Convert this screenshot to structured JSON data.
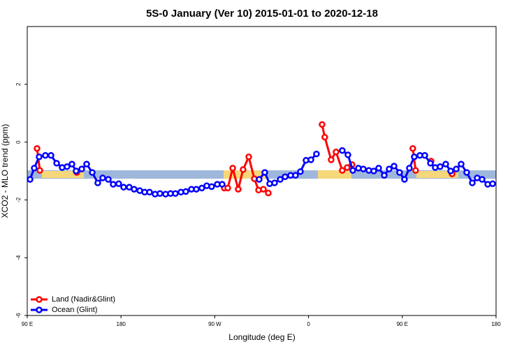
{
  "chart_data": {
    "type": "line",
    "title": "5S-0 January (Ver 10)   2015-01-01 to 2020-12-18",
    "xlabel": "Longitude (deg E)",
    "ylabel": "XCO2 - MLO trend (ppm)",
    "xlim": [
      90,
      540
    ],
    "ylim": [
      -6,
      4
    ],
    "xticks": [
      {
        "value": 90,
        "label": "90 E"
      },
      {
        "value": 180,
        "label": "180"
      },
      {
        "value": 270,
        "label": "90 W"
      },
      {
        "value": 360,
        "label": "0"
      },
      {
        "value": 450,
        "label": "90 E"
      },
      {
        "value": 540,
        "label": "180"
      }
    ],
    "yticks": [
      -6,
      -4,
      -2,
      0,
      2
    ],
    "legend": "bottomleft",
    "series": [
      {
        "name": "Land (Nadir&Glint)",
        "color": "#ff0000",
        "x": [
          99.4,
          102.1,
          null,
          137.6,
          null,
          279.1,
          282.5,
          287.2,
          292.5,
          297.2,
          302.6,
          308.0,
          312.0,
          316.7,
          321.4,
          null,
          373.0,
          375.6,
          381.7,
          386.4,
          392.4,
          397.1,
          401.8,
          null,
          460.1,
          462.8,
          null,
          477.7,
          null,
          497.8
        ],
        "values": [
          -0.22,
          -0.98,
          null,
          -1.05,
          null,
          -1.59,
          -1.59,
          -0.9,
          -1.63,
          -0.95,
          -0.51,
          -1.27,
          -1.66,
          -1.63,
          -1.76,
          null,
          0.61,
          0.17,
          -0.61,
          -0.34,
          -0.98,
          -0.88,
          -0.78,
          null,
          -0.22,
          -0.98,
          null,
          -0.66,
          null,
          -1.1
        ]
      },
      {
        "name": "Ocean (Glint)",
        "color": "#0000ff",
        "x": [
          92.7,
          96.7,
          101.4,
          107.4,
          112.8,
          118.2,
          123.5,
          128.2,
          132.9,
          136.9,
          142.3,
          147.0,
          152.4,
          157.7,
          162.4,
          167.8,
          172.5,
          177.8,
          182.5,
          187.9,
          192.6,
          198.0,
          202.7,
          207.4,
          212.7,
          217.4,
          222.8,
          227.5,
          232.2,
          237.5,
          242.2,
          247.6,
          252.3,
          257.6,
          262.3,
          267.0,
          272.4,
          277.1,
          null,
          312.6,
          318.0,
          322.7,
          327.4,
          332.8,
          337.5,
          342.8,
          347.5,
          352.2,
          357.6,
          362.3,
          367.6,
          null,
          392.4,
          397.8,
          402.5,
          407.9,
          412.6,
          417.9,
          422.6,
          427.3,
          432.7,
          437.4,
          442.1,
          447.4,
          452.1,
          456.8,
          461.5,
          466.9,
          471.6,
          477.0,
          481.6,
          486.3,
          491.7,
          496.4,
          501.8,
          506.5,
          511.8,
          517.2,
          521.9,
          526.6,
          532.0,
          536.7
        ],
        "values": [
          -1.29,
          -0.9,
          -0.51,
          -0.46,
          -0.46,
          -0.73,
          -0.88,
          -0.85,
          -0.76,
          -1.0,
          -0.93,
          -0.76,
          -1.05,
          -1.41,
          -1.24,
          -1.29,
          -1.46,
          -1.44,
          -1.56,
          -1.56,
          -1.63,
          -1.68,
          -1.73,
          -1.73,
          -1.8,
          -1.78,
          -1.8,
          -1.78,
          -1.78,
          -1.73,
          -1.71,
          -1.63,
          -1.63,
          -1.59,
          -1.51,
          -1.54,
          -1.46,
          -1.46,
          null,
          -1.29,
          -1.05,
          -1.44,
          -1.41,
          -1.29,
          -1.2,
          -1.15,
          -1.15,
          -1.02,
          -0.63,
          -0.61,
          -0.41,
          null,
          -0.29,
          -0.44,
          -0.98,
          -0.9,
          -0.93,
          -0.98,
          -1.0,
          -0.9,
          -1.15,
          -0.93,
          -0.83,
          -1.05,
          -1.29,
          -0.9,
          -0.51,
          -0.46,
          -0.46,
          -0.73,
          -0.88,
          -0.85,
          -0.76,
          -1.0,
          -0.93,
          -0.76,
          -1.05,
          -1.41,
          -1.24,
          -1.29,
          -1.46,
          -1.44
        ]
      }
    ]
  }
}
